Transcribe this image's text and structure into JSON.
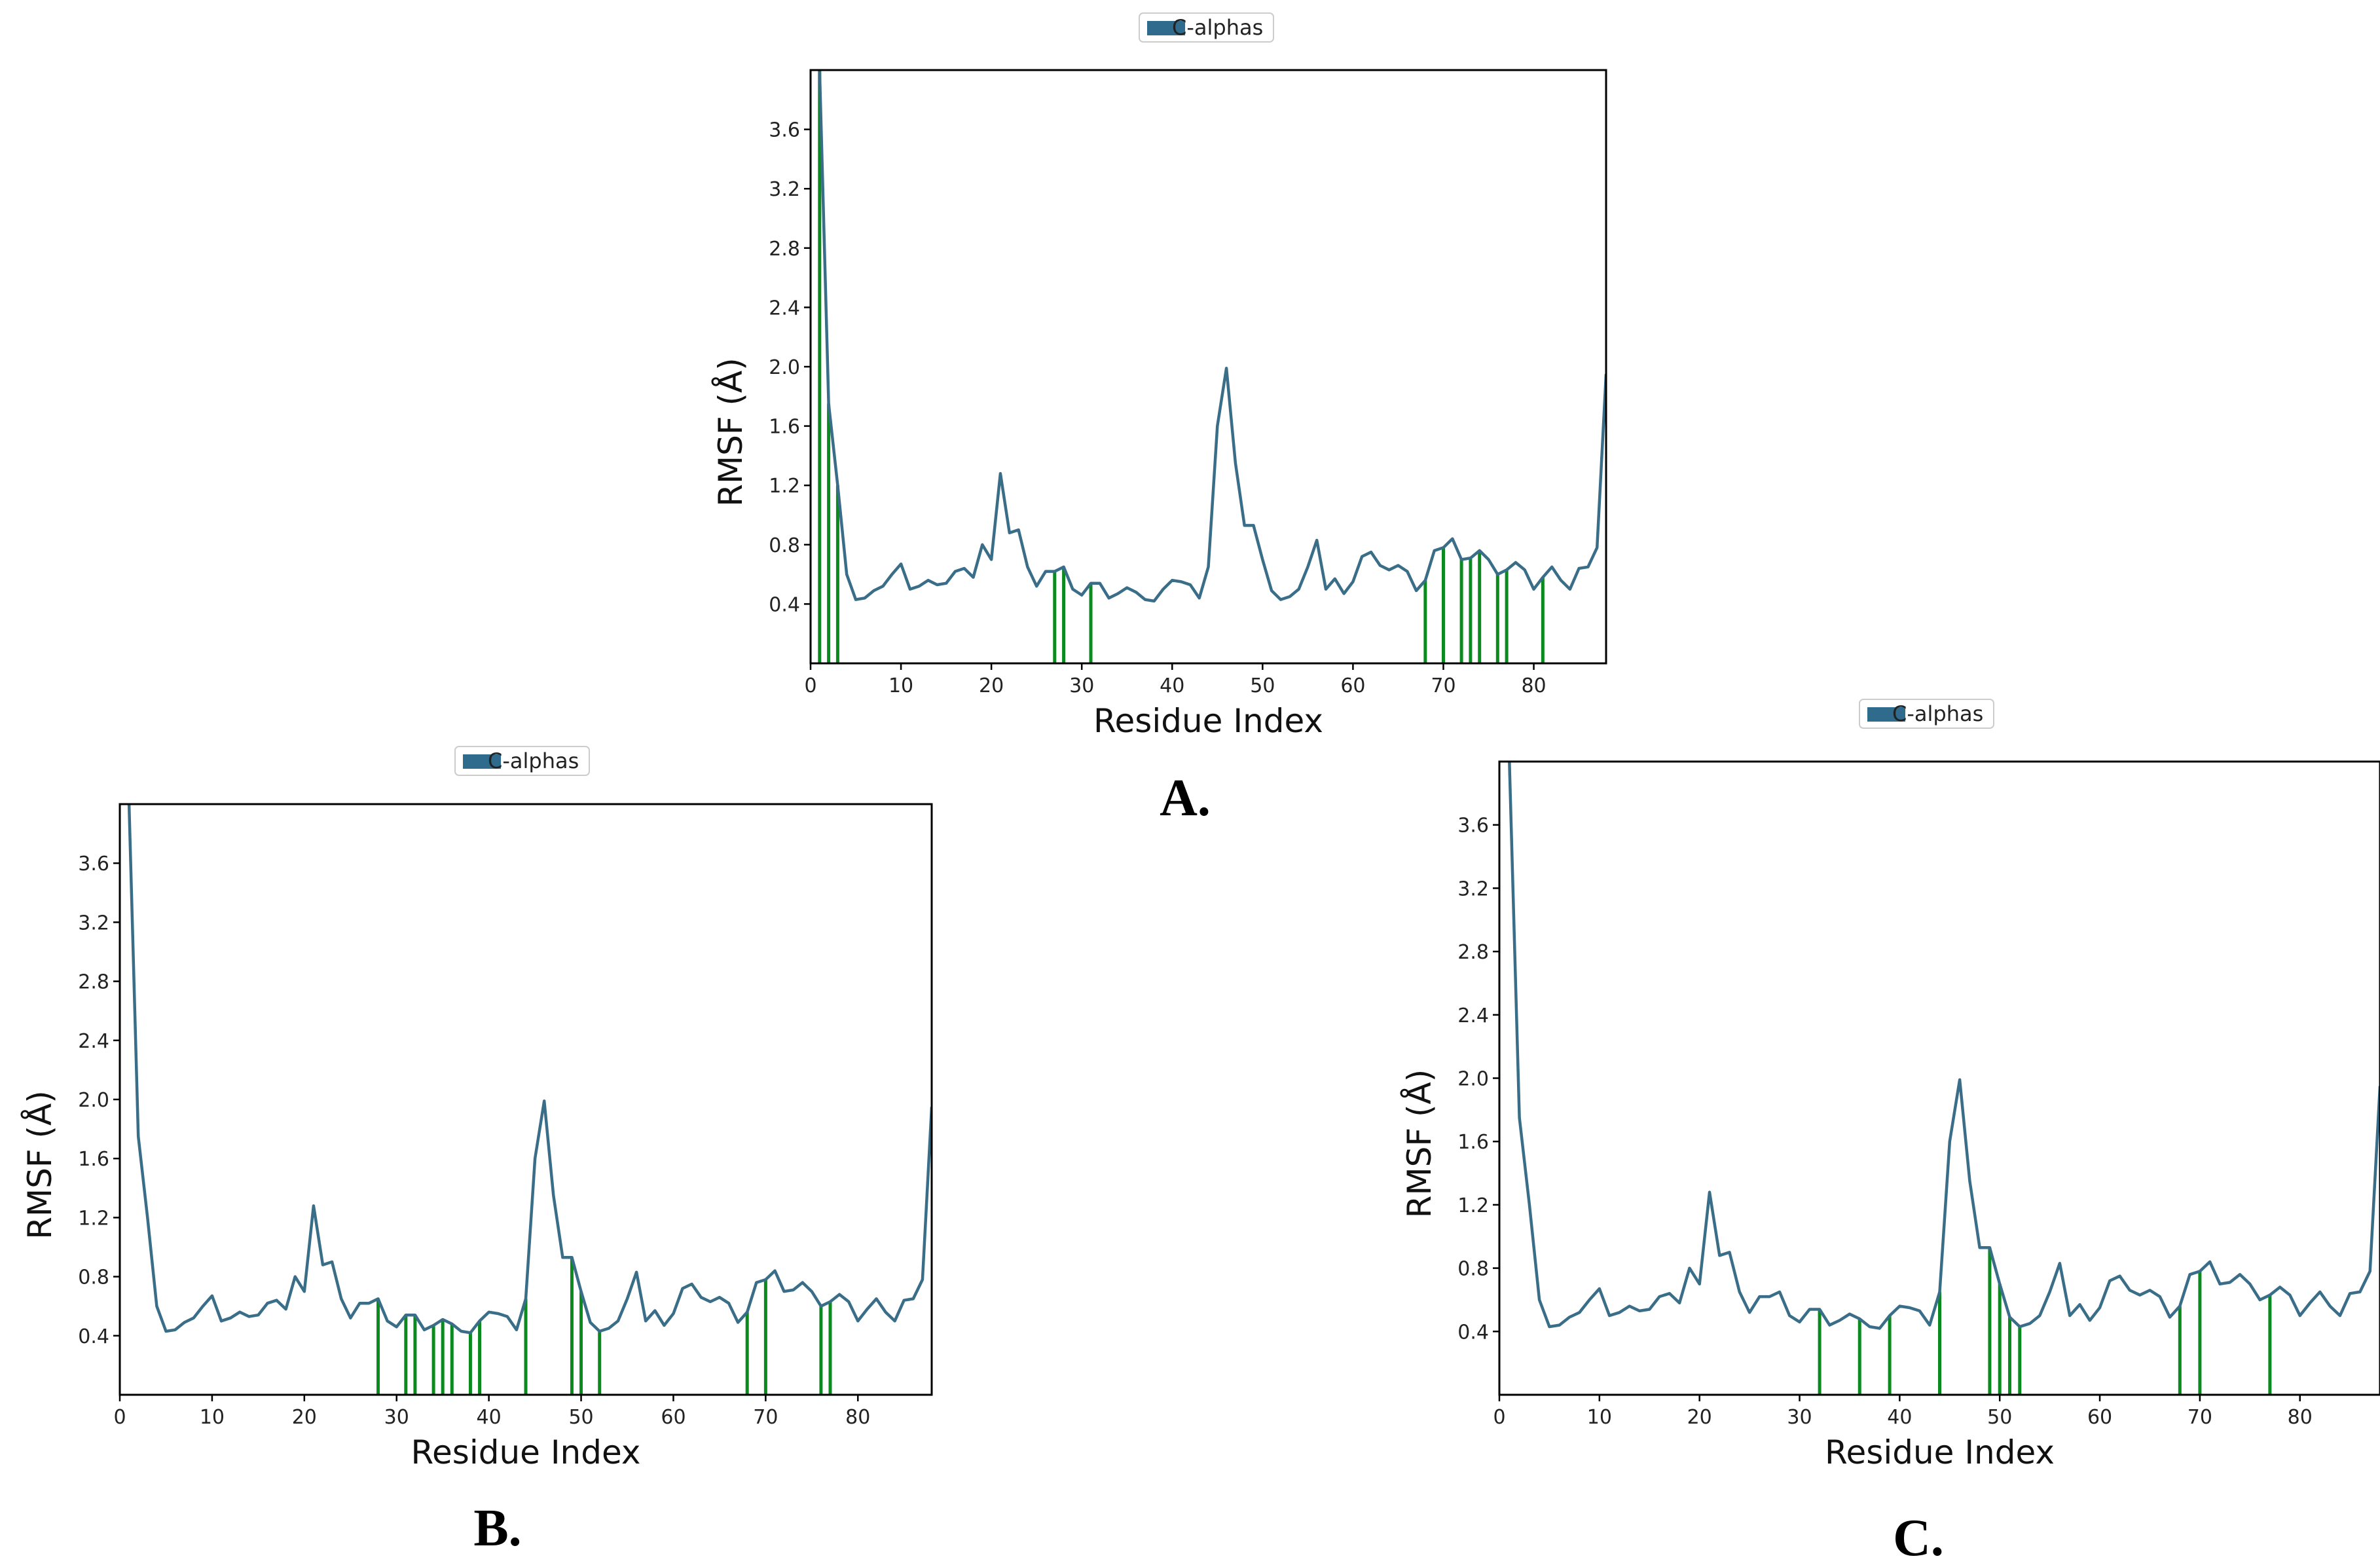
{
  "colors": {
    "line": "#3a6e88",
    "contact": "#0b8a1f",
    "legend_patch": "#2f6b8c",
    "frame": "#000000"
  },
  "chart_data": [
    {
      "type": "line",
      "panel_label": "A.",
      "legend": "C-alphas",
      "xlabel": "Residue Index",
      "ylabel": "RMSF (Å)",
      "xlim": [
        0,
        88
      ],
      "ylim": [
        0,
        4.0
      ],
      "xticks": [
        "0",
        "10",
        "20",
        "30",
        "40",
        "50",
        "60",
        "70",
        "80"
      ],
      "yticks": [
        "0.4",
        "0.8",
        "1.2",
        "1.6",
        "2.0",
        "2.4",
        "2.8",
        "3.2",
        "3.6"
      ],
      "contacts": [
        1,
        2,
        3,
        27,
        28,
        31,
        68,
        70,
        72,
        73,
        74,
        76,
        77,
        81
      ]
    },
    {
      "type": "line",
      "panel_label": "B.",
      "legend": "C-alphas",
      "xlabel": "Residue Index",
      "ylabel": "RMSF (Å)",
      "xlim": [
        0,
        88
      ],
      "ylim": [
        0,
        4.0
      ],
      "xticks": [
        "0",
        "10",
        "20",
        "30",
        "40",
        "50",
        "60",
        "70",
        "80"
      ],
      "yticks": [
        "0.4",
        "0.8",
        "1.2",
        "1.6",
        "2.0",
        "2.4",
        "2.8",
        "3.2",
        "3.6"
      ],
      "contacts": [
        28,
        31,
        32,
        34,
        35,
        36,
        38,
        39,
        44,
        49,
        50,
        52,
        68,
        70,
        76,
        77
      ]
    },
    {
      "type": "line",
      "panel_label": "C.",
      "legend": "C-alphas",
      "xlabel": "Residue Index",
      "ylabel": "RMSF (Å)",
      "xlim": [
        0,
        88
      ],
      "ylim": [
        0,
        4.0
      ],
      "xticks": [
        "0",
        "10",
        "20",
        "30",
        "40",
        "50",
        "60",
        "70",
        "80"
      ],
      "yticks": [
        "0.4",
        "0.8",
        "1.2",
        "1.6",
        "2.0",
        "2.4",
        "2.8",
        "3.2",
        "3.6"
      ],
      "contacts": [
        32,
        36,
        39,
        44,
        49,
        50,
        51,
        52,
        68,
        70,
        77
      ]
    }
  ],
  "rmsf_series": {
    "name": "C-alphas",
    "x": [
      1,
      2,
      3,
      4,
      5,
      6,
      7,
      8,
      9,
      10,
      11,
      12,
      13,
      14,
      15,
      16,
      17,
      18,
      19,
      20,
      21,
      22,
      23,
      24,
      25,
      26,
      27,
      28,
      29,
      30,
      31,
      32,
      33,
      34,
      35,
      36,
      37,
      38,
      39,
      40,
      41,
      42,
      43,
      44,
      45,
      46,
      47,
      48,
      49,
      50,
      51,
      52,
      53,
      54,
      55,
      56,
      57,
      58,
      59,
      60,
      61,
      62,
      63,
      64,
      65,
      66,
      67,
      68,
      69,
      70,
      71,
      72,
      73,
      74,
      75,
      76,
      77,
      78,
      79,
      80,
      81,
      82,
      83,
      84,
      85,
      86,
      87,
      88
    ],
    "y": [
      4.0,
      1.75,
      1.2,
      0.6,
      0.43,
      0.44,
      0.49,
      0.52,
      0.6,
      0.67,
      0.5,
      0.52,
      0.56,
      0.53,
      0.54,
      0.62,
      0.64,
      0.58,
      0.8,
      0.7,
      1.28,
      0.88,
      0.9,
      0.65,
      0.52,
      0.62,
      0.62,
      0.65,
      0.5,
      0.46,
      0.54,
      0.54,
      0.44,
      0.47,
      0.51,
      0.48,
      0.43,
      0.42,
      0.5,
      0.56,
      0.55,
      0.53,
      0.44,
      0.65,
      1.6,
      1.99,
      1.35,
      0.93,
      0.93,
      0.7,
      0.49,
      0.43,
      0.45,
      0.5,
      0.65,
      0.83,
      0.5,
      0.57,
      0.47,
      0.55,
      0.72,
      0.75,
      0.66,
      0.63,
      0.66,
      0.62,
      0.49,
      0.56,
      0.76,
      0.78,
      0.84,
      0.7,
      0.71,
      0.76,
      0.7,
      0.6,
      0.63,
      0.68,
      0.63,
      0.5,
      0.58,
      0.65,
      0.56,
      0.5,
      0.64,
      0.65,
      0.78,
      1.95
    ]
  }
}
